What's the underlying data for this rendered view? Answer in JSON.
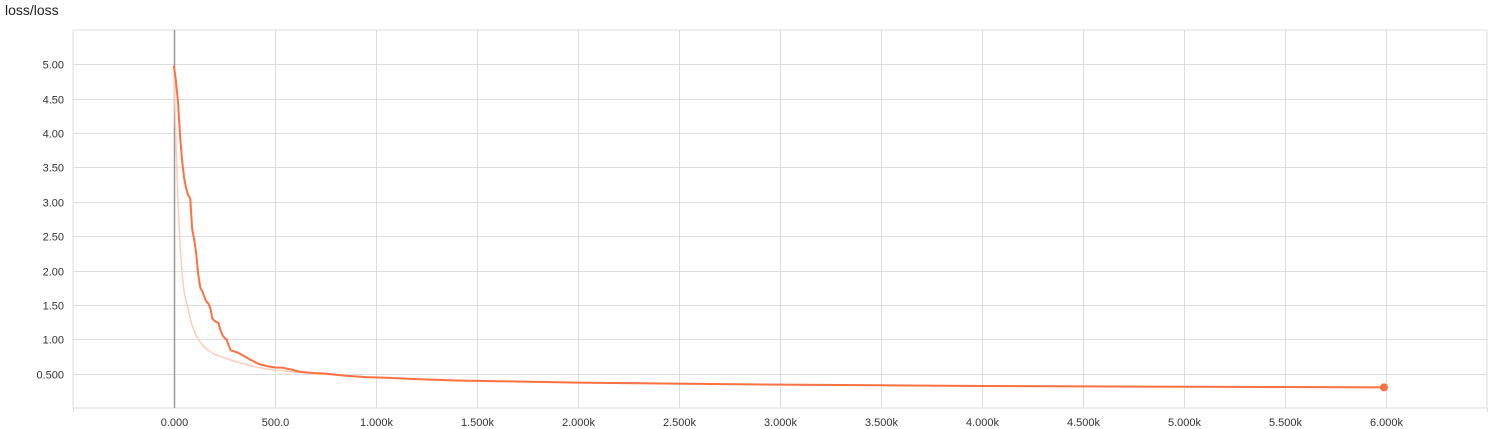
{
  "chart_title": "loss/loss",
  "colors": {
    "series": "#ff7043",
    "series_raw": "#ffccbc",
    "grid": "#dddddd",
    "zero_axis": "#999999"
  },
  "chart_data": {
    "type": "line",
    "title": "loss/loss",
    "xlabel": "",
    "ylabel": "",
    "xlim": [
      -500,
      6500
    ],
    "ylim": [
      0.0,
      5.5
    ],
    "grid": true,
    "legend": "none",
    "x_ticks": [
      {
        "value": 0,
        "label": "0.000"
      },
      {
        "value": 500,
        "label": "500.0"
      },
      {
        "value": 1000,
        "label": "1.000k"
      },
      {
        "value": 1500,
        "label": "1.500k"
      },
      {
        "value": 2000,
        "label": "2.000k"
      },
      {
        "value": 2500,
        "label": "2.500k"
      },
      {
        "value": 3000,
        "label": "3.000k"
      },
      {
        "value": 3500,
        "label": "3.500k"
      },
      {
        "value": 4000,
        "label": "4.000k"
      },
      {
        "value": 4500,
        "label": "4.500k"
      },
      {
        "value": 5000,
        "label": "5.000k"
      },
      {
        "value": 5500,
        "label": "5.500k"
      },
      {
        "value": 6000,
        "label": "6.000k"
      }
    ],
    "y_ticks": [
      {
        "value": 0.5,
        "label": "0.500"
      },
      {
        "value": 1.0,
        "label": "1.00"
      },
      {
        "value": 1.5,
        "label": "1.50"
      },
      {
        "value": 2.0,
        "label": "2.00"
      },
      {
        "value": 2.5,
        "label": "2.50"
      },
      {
        "value": 3.0,
        "label": "3.00"
      },
      {
        "value": 3.5,
        "label": "3.50"
      },
      {
        "value": 4.0,
        "label": "4.00"
      },
      {
        "value": 4.5,
        "label": "4.50"
      },
      {
        "value": 5.0,
        "label": "5.00"
      }
    ],
    "series": [
      {
        "role": "smoothed",
        "color": "#ff7043",
        "points": [
          [
            0,
            4.97
          ],
          [
            10,
            4.75
          ],
          [
            20,
            4.45
          ],
          [
            30,
            3.95
          ],
          [
            40,
            3.6
          ],
          [
            50,
            3.35
          ],
          [
            60,
            3.2
          ],
          [
            70,
            3.1
          ],
          [
            80,
            3.05
          ],
          [
            90,
            2.6
          ],
          [
            100,
            2.45
          ],
          [
            110,
            2.25
          ],
          [
            120,
            1.95
          ],
          [
            130,
            1.75
          ],
          [
            140,
            1.7
          ],
          [
            150,
            1.62
          ],
          [
            160,
            1.55
          ],
          [
            170,
            1.52
          ],
          [
            180,
            1.45
          ],
          [
            190,
            1.3
          ],
          [
            200,
            1.27
          ],
          [
            210,
            1.25
          ],
          [
            220,
            1.24
          ],
          [
            230,
            1.13
          ],
          [
            240,
            1.06
          ],
          [
            250,
            1.02
          ],
          [
            260,
            1.0
          ],
          [
            270,
            0.92
          ],
          [
            280,
            0.84
          ],
          [
            300,
            0.82
          ],
          [
            320,
            0.8
          ],
          [
            350,
            0.75
          ],
          [
            380,
            0.7
          ],
          [
            420,
            0.64
          ],
          [
            460,
            0.61
          ],
          [
            500,
            0.59
          ],
          [
            540,
            0.585
          ],
          [
            580,
            0.56
          ],
          [
            620,
            0.53
          ],
          [
            680,
            0.51
          ],
          [
            750,
            0.5
          ],
          [
            850,
            0.47
          ],
          [
            950,
            0.45
          ],
          [
            1050,
            0.44
          ],
          [
            1200,
            0.42
          ],
          [
            1400,
            0.4
          ],
          [
            1600,
            0.39
          ],
          [
            1800,
            0.38
          ],
          [
            2000,
            0.37
          ],
          [
            2300,
            0.36
          ],
          [
            2600,
            0.35
          ],
          [
            3000,
            0.34
          ],
          [
            3500,
            0.33
          ],
          [
            4000,
            0.32
          ],
          [
            4500,
            0.315
          ],
          [
            5000,
            0.31
          ],
          [
            5500,
            0.305
          ],
          [
            5990,
            0.3
          ]
        ]
      },
      {
        "role": "raw",
        "color": "#ffccbc",
        "points": [
          [
            0,
            4.9
          ],
          [
            10,
            3.9
          ],
          [
            20,
            3.0
          ],
          [
            30,
            2.35
          ],
          [
            40,
            1.95
          ],
          [
            50,
            1.7
          ],
          [
            60,
            1.55
          ],
          [
            70,
            1.45
          ],
          [
            80,
            1.3
          ],
          [
            90,
            1.2
          ],
          [
            100,
            1.12
          ],
          [
            120,
            1.0
          ],
          [
            140,
            0.92
          ],
          [
            160,
            0.86
          ],
          [
            180,
            0.82
          ],
          [
            200,
            0.78
          ],
          [
            230,
            0.75
          ],
          [
            260,
            0.72
          ],
          [
            300,
            0.68
          ],
          [
            350,
            0.64
          ],
          [
            400,
            0.6
          ],
          [
            450,
            0.57
          ],
          [
            500,
            0.55
          ],
          [
            550,
            0.54
          ],
          [
            600,
            0.52
          ],
          [
            700,
            0.5
          ],
          [
            800,
            0.48
          ]
        ]
      }
    ],
    "last_point": {
      "x": 5990,
      "y": 0.3
    }
  }
}
